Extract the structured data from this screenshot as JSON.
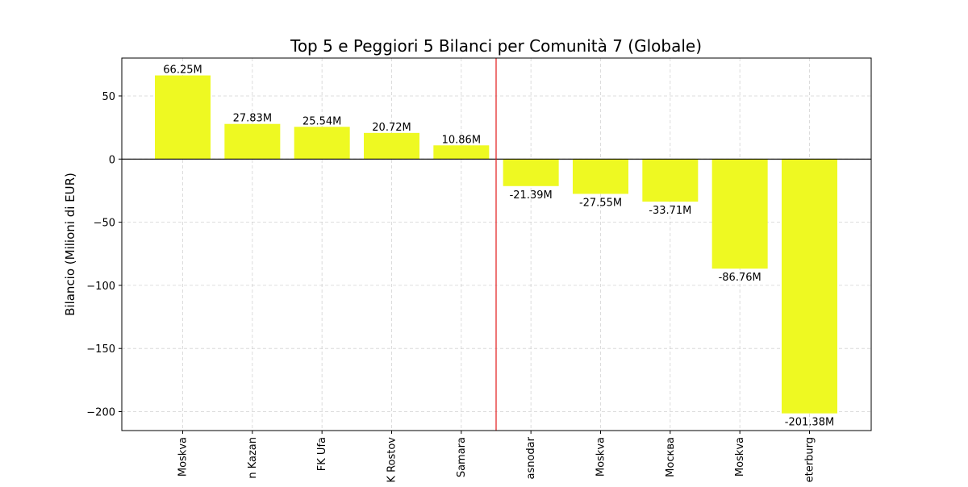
{
  "chart_data": {
    "type": "bar",
    "title": "Top 5 e Peggiori 5 Bilanci per Comunità 7 (Globale)",
    "xlabel": "",
    "ylabel": "Bilancio (Milioni di EUR)",
    "categories": [
      "Moskva",
      "n Kazan",
      "FK Ufa",
      "K Rostov",
      "Samara",
      "asnodar",
      "Moskva",
      "Москва",
      "Moskva",
      "eterburg"
    ],
    "values": [
      66.25,
      27.83,
      25.54,
      20.72,
      10.86,
      -21.39,
      -27.55,
      -33.71,
      -86.76,
      -201.38
    ],
    "bar_labels": [
      "66.25M",
      "27.83M",
      "25.54M",
      "20.72M",
      "10.86M",
      "-21.39M",
      "-27.55M",
      "-33.71M",
      "-86.76M",
      "-201.38M"
    ],
    "ylim": [
      -215,
      80
    ],
    "yticks": [
      50,
      0,
      -50,
      -100,
      -150,
      -200
    ],
    "ytick_labels": [
      "50",
      "0",
      "−50",
      "−100",
      "−150",
      "−200"
    ],
    "grid": true,
    "bar_color": "#eef922",
    "zero_line_color": "#000000",
    "separator_after_index": 4,
    "separator_color": "#e31a1c"
  }
}
